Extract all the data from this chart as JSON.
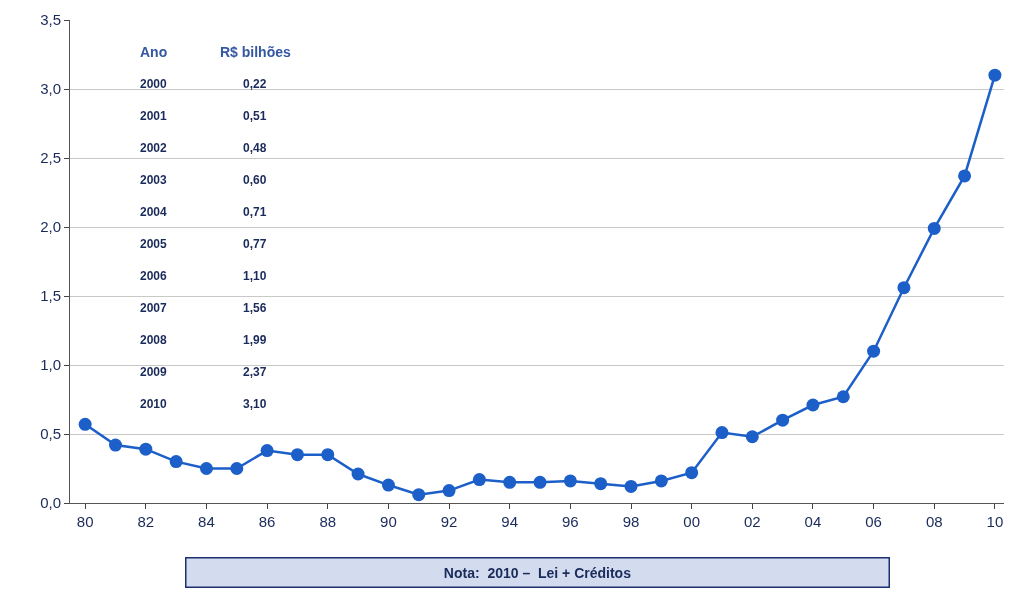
{
  "chart_data": {
    "type": "line",
    "x": [
      1980,
      1981,
      1982,
      1983,
      1984,
      1985,
      1986,
      1987,
      1988,
      1989,
      1990,
      1991,
      1992,
      1993,
      1994,
      1995,
      1996,
      1997,
      1998,
      1999,
      2000,
      2001,
      2002,
      2003,
      2004,
      2005,
      2006,
      2007,
      2008,
      2009,
      2010
    ],
    "series": [
      {
        "color": "#1c5fc8",
        "values": [
          0.57,
          0.42,
          0.39,
          0.3,
          0.25,
          0.25,
          0.38,
          0.35,
          0.35,
          0.21,
          0.13,
          0.06,
          0.09,
          0.17,
          0.15,
          0.15,
          0.16,
          0.14,
          0.12,
          0.16,
          0.22,
          0.51,
          0.48,
          0.6,
          0.71,
          0.77,
          1.1,
          1.56,
          1.99,
          2.37,
          3.1
        ]
      }
    ],
    "marker": "circle",
    "line_style": "solid",
    "grid": "y",
    "xlim": [
      1979.5,
      2010.3
    ],
    "xticks": [
      {
        "value": 1980,
        "label": "80"
      },
      {
        "value": 1982,
        "label": "82"
      },
      {
        "value": 1984,
        "label": "84"
      },
      {
        "value": 1986,
        "label": "86"
      },
      {
        "value": 1988,
        "label": "88"
      },
      {
        "value": 1990,
        "label": "90"
      },
      {
        "value": 1992,
        "label": "92"
      },
      {
        "value": 1994,
        "label": "94"
      },
      {
        "value": 1996,
        "label": "96"
      },
      {
        "value": 1998,
        "label": "98"
      },
      {
        "value": 2000,
        "label": "00"
      },
      {
        "value": 2002,
        "label": "02"
      },
      {
        "value": 2004,
        "label": "04"
      },
      {
        "value": 2006,
        "label": "06"
      },
      {
        "value": 2008,
        "label": "08"
      },
      {
        "value": 2010,
        "label": "10"
      }
    ],
    "ylim": [
      0,
      3.5
    ],
    "yticks": [
      {
        "value": 0,
        "label": "0,0"
      },
      {
        "value": 0.5,
        "label": "0,5"
      },
      {
        "value": 1,
        "label": "1,0"
      },
      {
        "value": 1.5,
        "label": "1,5"
      },
      {
        "value": 2,
        "label": "2,0"
      },
      {
        "value": 2.5,
        "label": "2,5"
      },
      {
        "value": 3,
        "label": "3,0"
      },
      {
        "value": 3.5,
        "label": "3,5"
      }
    ],
    "annotations": [
      "Ano",
      "R$ bilhões",
      "2000",
      "0,22",
      "2001",
      "0,51",
      "2002",
      "0,48",
      "2003",
      "0,60",
      "2004",
      "0,71",
      "2005",
      "0,77",
      "2006",
      "1,10",
      "2007",
      "1,56",
      "2008",
      "1,99",
      "2009",
      "2,37",
      "2010",
      "3,10",
      "Nota:  2010 –  Lei + Créditos"
    ]
  }
}
